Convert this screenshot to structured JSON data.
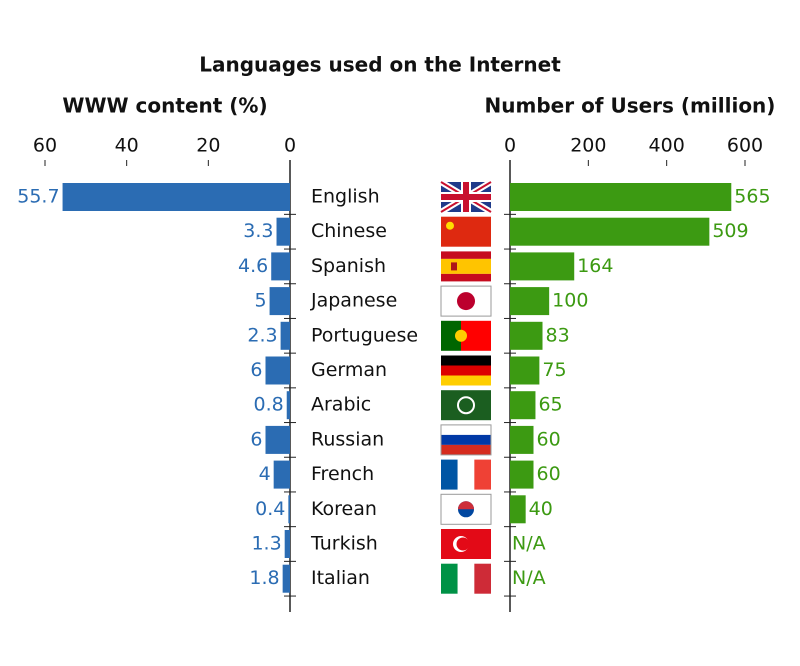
{
  "title": "Languages used on the Internet",
  "chart_data": {
    "type": "bar",
    "categories": [
      "English",
      "Chinese",
      "Spanish",
      "Japanese",
      "Portuguese",
      "German",
      "Arabic",
      "Russian",
      "French",
      "Korean",
      "Turkish",
      "Italian"
    ],
    "series": [
      {
        "name": "WWW content (%)",
        "color": "#2b6cb3",
        "axis": "x",
        "values": [
          55.7,
          3.3,
          4.6,
          5,
          2.3,
          6,
          0.8,
          6,
          4,
          0.4,
          1.3,
          1.8
        ]
      },
      {
        "name": "Number of Users (million)",
        "color": "#3c9a12",
        "axis": "x2",
        "values": [
          565,
          509,
          164,
          100,
          83,
          75,
          65,
          60,
          60,
          40,
          null,
          null
        ],
        "value_labels": [
          "565",
          "509",
          "164",
          "100",
          "83",
          "75",
          "65",
          "60",
          "60",
          "40",
          "N/A",
          "N/A"
        ]
      }
    ],
    "xlim": [
      60,
      0
    ],
    "xticks": [
      60,
      40,
      20,
      0
    ],
    "x2lim": [
      0,
      600
    ],
    "x2ticks": [
      0,
      200,
      400,
      600
    ]
  }
}
